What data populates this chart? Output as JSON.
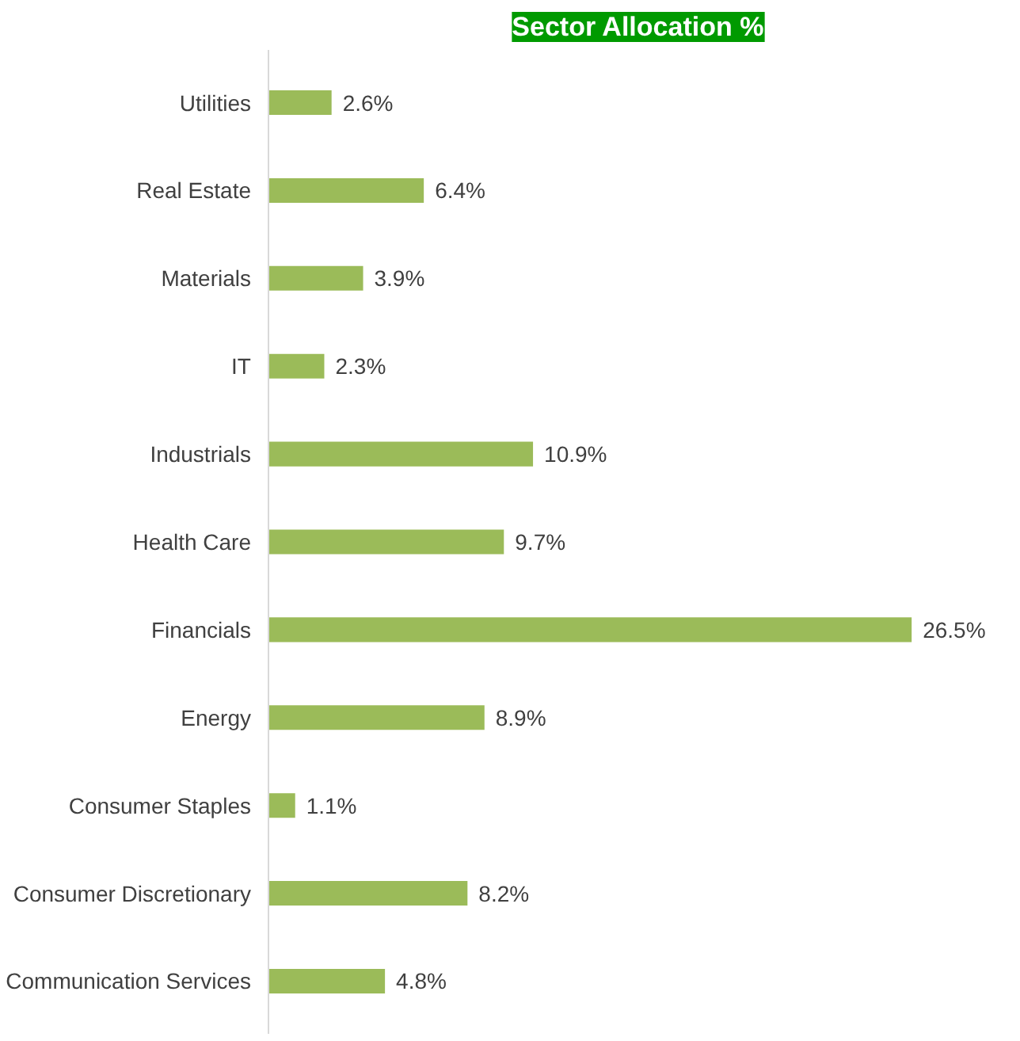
{
  "chart_data": {
    "type": "bar",
    "orientation": "horizontal",
    "title": "Sector Allocation %",
    "categories": [
      "Utilities",
      "Real Estate",
      "Materials",
      "IT",
      "Industrials",
      "Health Care",
      "Financials",
      "Energy",
      "Consumer Staples",
      "Consumer Discretionary",
      "Communication Services"
    ],
    "values": [
      2.6,
      6.4,
      3.9,
      2.3,
      10.9,
      9.7,
      26.5,
      8.9,
      1.1,
      8.2,
      4.8
    ],
    "value_labels": [
      "2.6%",
      "6.4%",
      "3.9%",
      "2.3%",
      "10.9%",
      "9.7%",
      "26.5%",
      "8.9%",
      "1.1%",
      "8.2%",
      "4.8%"
    ],
    "color": "#9bbb59",
    "grid": false,
    "tick_labels": "y"
  }
}
